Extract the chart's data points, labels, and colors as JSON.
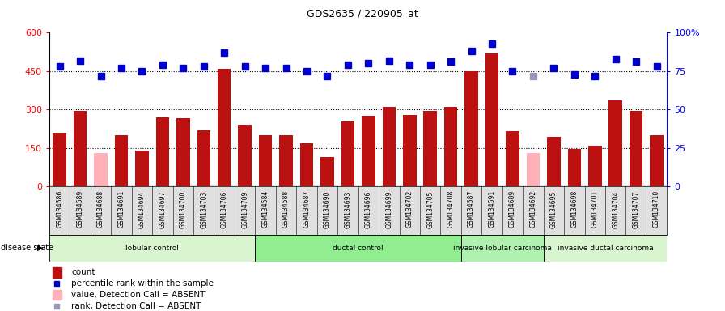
{
  "title": "GDS2635 / 220905_at",
  "samples": [
    "GSM134586",
    "GSM134589",
    "GSM134688",
    "GSM134691",
    "GSM134694",
    "GSM134697",
    "GSM134700",
    "GSM134703",
    "GSM134706",
    "GSM134709",
    "GSM134584",
    "GSM134588",
    "GSM134687",
    "GSM134690",
    "GSM134693",
    "GSM134696",
    "GSM134699",
    "GSM134702",
    "GSM134705",
    "GSM134708",
    "GSM134587",
    "GSM134591",
    "GSM134689",
    "GSM134692",
    "GSM134695",
    "GSM134698",
    "GSM134701",
    "GSM134704",
    "GSM134707",
    "GSM134710"
  ],
  "counts": [
    210,
    295,
    130,
    200,
    140,
    270,
    265,
    220,
    460,
    240,
    200,
    200,
    170,
    115,
    255,
    275,
    310,
    280,
    295,
    310,
    450,
    520,
    215,
    130,
    195,
    145,
    160,
    335,
    295,
    200
  ],
  "absent_count_indices": [
    2,
    23
  ],
  "ranks": [
    78,
    82,
    72,
    77,
    75,
    79,
    77,
    78,
    87,
    78,
    77,
    77,
    75,
    72,
    79,
    80,
    82,
    79,
    79,
    81,
    88,
    93,
    75,
    72,
    77,
    73,
    72,
    83,
    81,
    78
  ],
  "absent_rank_indices": [
    23
  ],
  "groups": [
    {
      "label": "lobular control",
      "start": 0,
      "end": 10,
      "color": "#d8f5d0"
    },
    {
      "label": "ductal control",
      "start": 10,
      "end": 20,
      "color": "#90ee90"
    },
    {
      "label": "invasive lobular carcinoma",
      "start": 20,
      "end": 24,
      "color": "#b0f0b0"
    },
    {
      "label": "invasive ductal carcinoma",
      "start": 24,
      "end": 30,
      "color": "#d8f5d0"
    }
  ],
  "ylim_left": [
    0,
    600
  ],
  "ylim_right": [
    0,
    100
  ],
  "yticks_left": [
    0,
    150,
    300,
    450,
    600
  ],
  "yticks_right": [
    0,
    25,
    50,
    75,
    100
  ],
  "bar_color": "#bb1111",
  "absent_bar_color": "#ffb0b8",
  "rank_color": "#0000cc",
  "absent_rank_color": "#9999bb",
  "bg_color": "#ffffff",
  "plot_bg": "#ffffff",
  "hgrid_values": [
    150,
    300,
    450
  ]
}
